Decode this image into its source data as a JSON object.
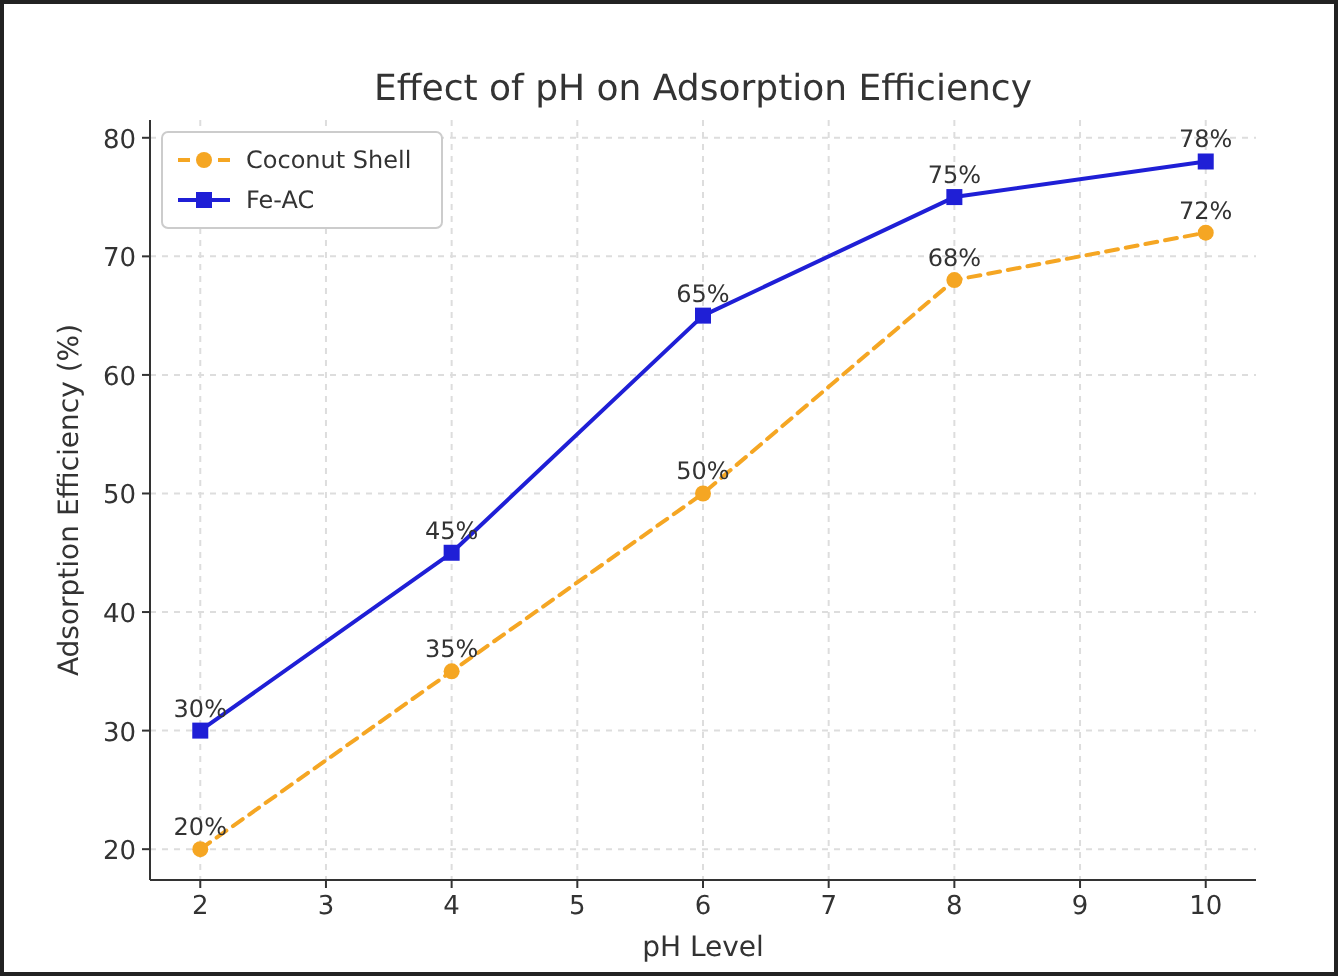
{
  "chart_data": {
    "type": "line",
    "title": "Effect of pH on Adsorption Efficiency",
    "xlabel": "pH Level",
    "ylabel": "Adsorption Efficiency (%)",
    "x": [
      2,
      4,
      6,
      8,
      10
    ],
    "series": [
      {
        "name": "Coconut Shell",
        "color": "#f5a623",
        "values": [
          20,
          35,
          50,
          68,
          72
        ],
        "value_labels": [
          "20%",
          "35%",
          "50%",
          "68%",
          "72%"
        ],
        "marker": "circle",
        "line_style": "dashed"
      },
      {
        "name": "Fe-AC",
        "color": "#1f1fd6",
        "values": [
          30,
          45,
          65,
          75,
          78
        ],
        "value_labels": [
          "30%",
          "45%",
          "65%",
          "75%",
          "78%"
        ],
        "marker": "square",
        "line_style": "solid"
      }
    ],
    "xlim": [
      1.6,
      10.4
    ],
    "xticks": [
      2,
      3,
      4,
      5,
      6,
      7,
      8,
      9,
      10
    ],
    "ylim": [
      17.4,
      81.5
    ],
    "yticks": [
      20,
      30,
      40,
      50,
      60,
      70,
      80
    ],
    "grid": true,
    "legend": "top left"
  }
}
